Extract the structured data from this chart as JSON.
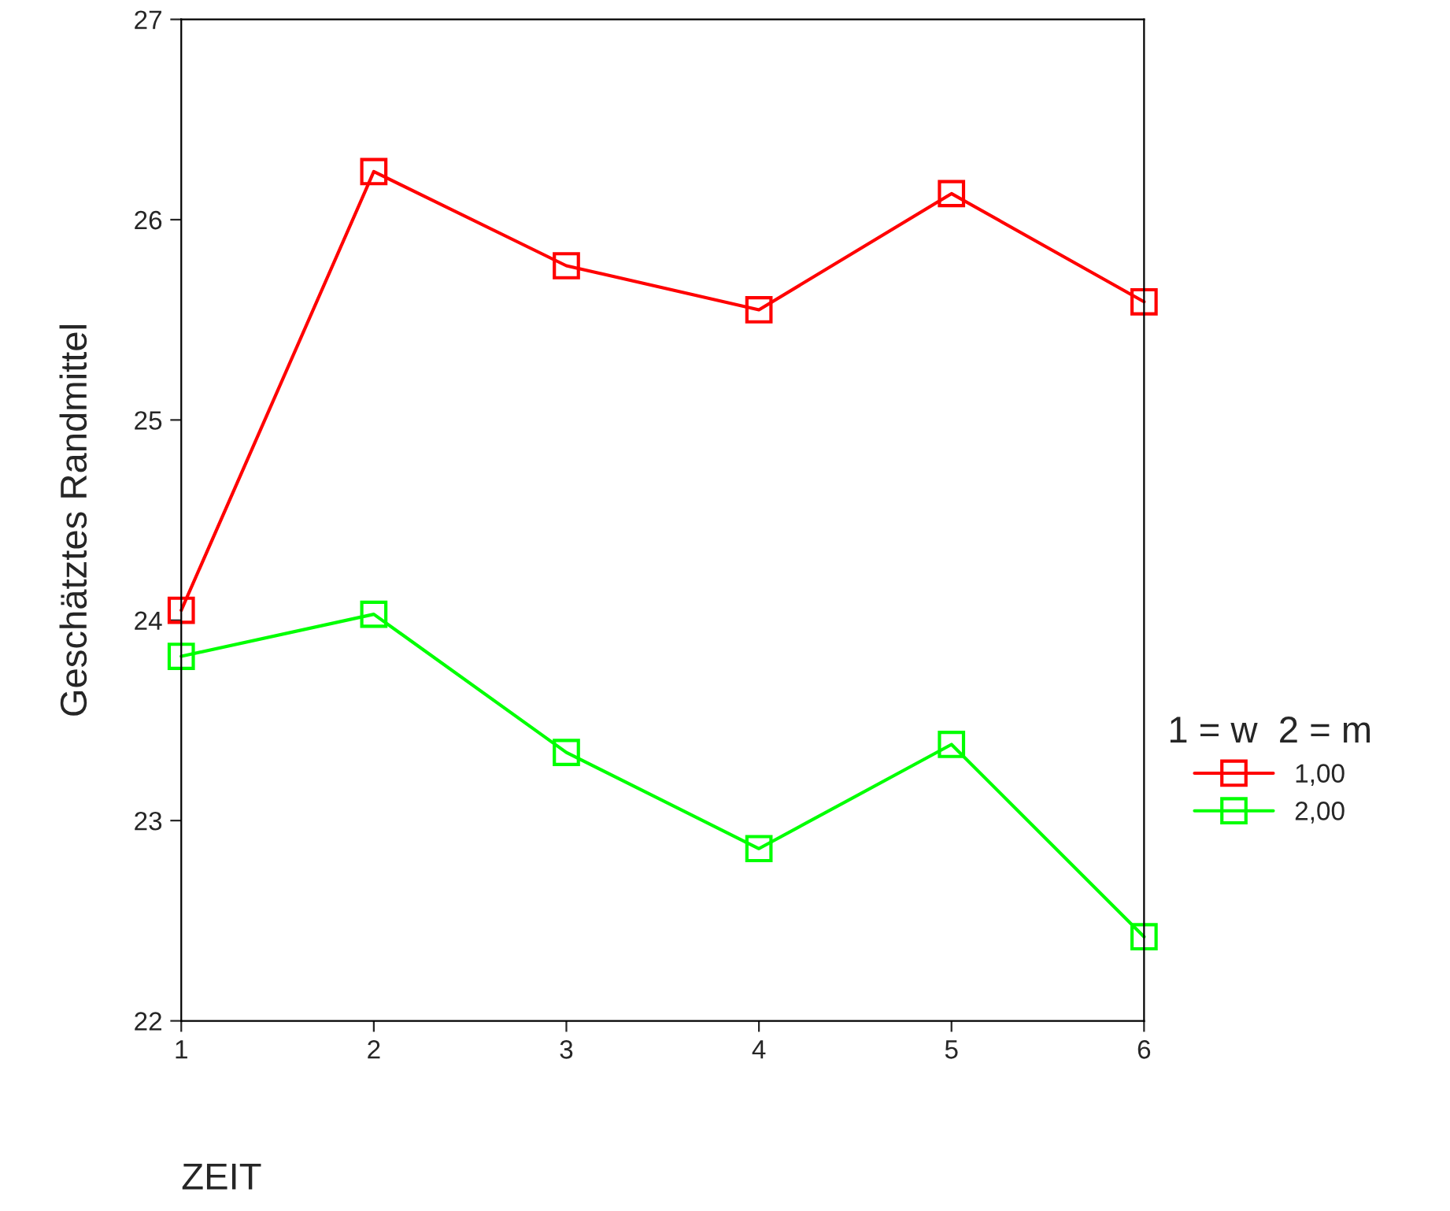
{
  "chart_data": {
    "type": "line",
    "xlabel": "ZEIT",
    "ylabel": "Geschätztes Randmittel",
    "legend_title": "1 = w  2 = m",
    "x": [
      1,
      2,
      3,
      4,
      5,
      6
    ],
    "series": [
      {
        "name": "1,00",
        "color": "#ff0000",
        "values": [
          24.05,
          26.24,
          25.77,
          25.55,
          26.13,
          25.59
        ]
      },
      {
        "name": "2,00",
        "color": "#00ff00",
        "values": [
          23.82,
          24.03,
          23.34,
          22.86,
          23.38,
          22.42
        ]
      }
    ],
    "xlim": [
      1,
      6
    ],
    "xticks": [
      1,
      2,
      3,
      4,
      5,
      6
    ],
    "ylim": [
      22,
      27
    ],
    "yticks": [
      22,
      23,
      24,
      25,
      26,
      27
    ],
    "marker": "square",
    "line_style": "solid",
    "legend": "right",
    "grid": false
  }
}
